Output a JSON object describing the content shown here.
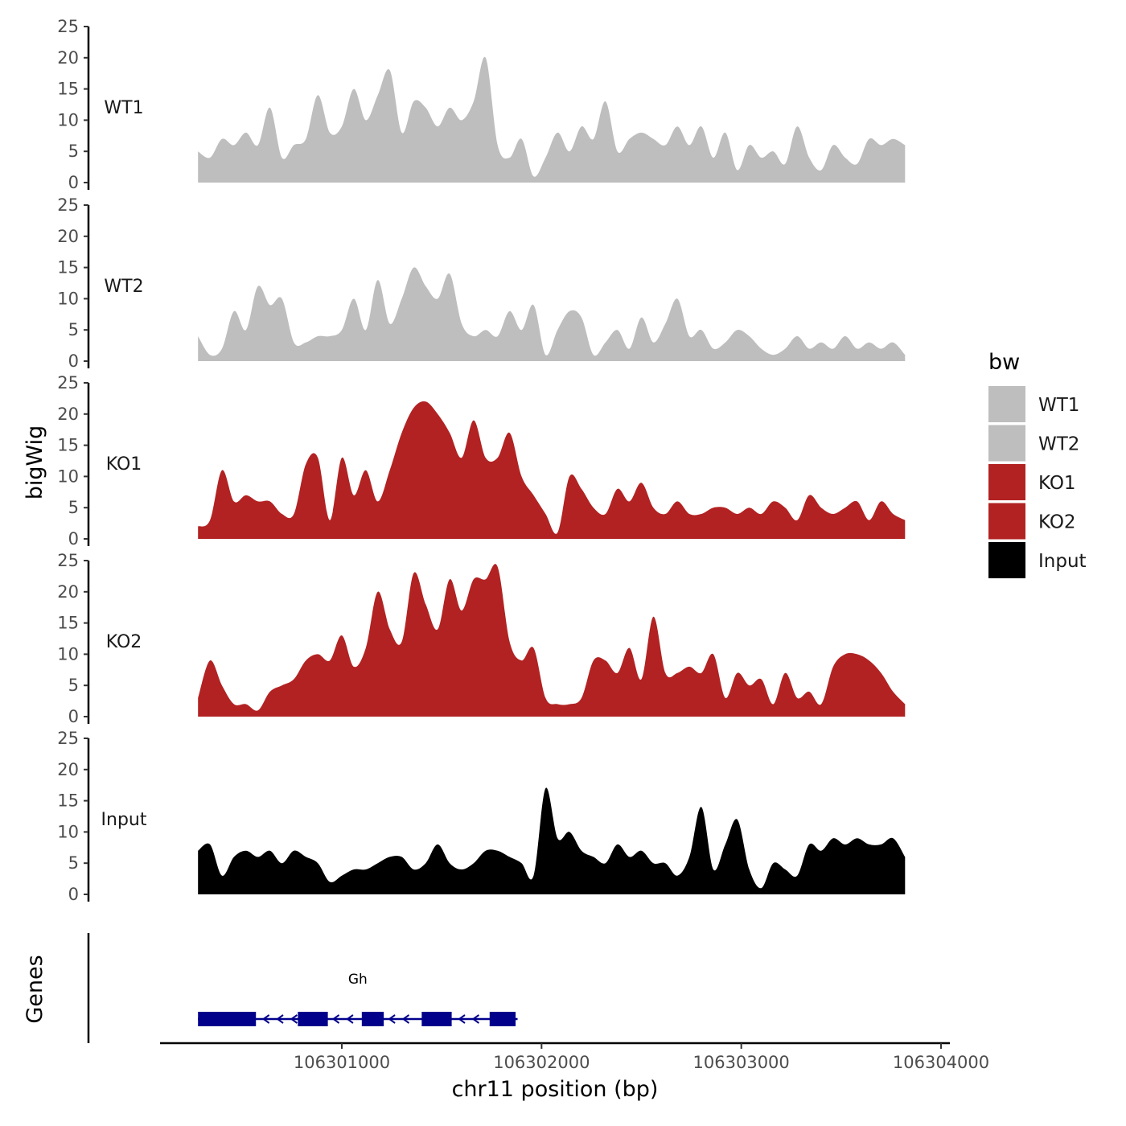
{
  "chart_data": {
    "type": "area",
    "layout": "stacked-tracks",
    "ylabel": "bigWig",
    "xlabel": "chr11 position (bp)",
    "genes_label": "Genes",
    "ylim": [
      0,
      25
    ],
    "y_ticks": [
      "0",
      "5",
      "10",
      "15",
      "20",
      "25"
    ],
    "xlim": [
      106300000,
      106304000
    ],
    "x_ticks": [
      {
        "value": 106301000,
        "label": "106301000"
      },
      {
        "value": 106302000,
        "label": "106302000"
      },
      {
        "value": 106303000,
        "label": "106303000"
      },
      {
        "value": 106304000,
        "label": "106304000"
      }
    ],
    "x_range": [
      106300280,
      106303840
    ],
    "x_step": 60,
    "legend": {
      "title": "bw",
      "placement": "right",
      "entries": [
        {
          "name": "WT1",
          "color": "#bebebe"
        },
        {
          "name": "WT2",
          "color": "#bebebe"
        },
        {
          "name": "KO1",
          "color": "#b22222"
        },
        {
          "name": "KO2",
          "color": "#b22222"
        },
        {
          "name": "Input",
          "color": "#000000"
        }
      ]
    },
    "series": [
      {
        "name": "WT1",
        "color": "#bebebe",
        "values": [
          5,
          4,
          7,
          6,
          8,
          6,
          12,
          4,
          6,
          7,
          14,
          8,
          9,
          15,
          10,
          14,
          18,
          8,
          13,
          12,
          9,
          12,
          10,
          13,
          20,
          6,
          4,
          7,
          1,
          4,
          8,
          5,
          9,
          7,
          13,
          5,
          7,
          8,
          7,
          6,
          9,
          6,
          9,
          4,
          8,
          2,
          6,
          4,
          5,
          3,
          9,
          4,
          2,
          6,
          4,
          3,
          7,
          6,
          7,
          6
        ]
      },
      {
        "name": "WT2",
        "color": "#bebebe",
        "values": [
          4,
          1,
          2,
          8,
          5,
          12,
          9,
          10,
          3,
          3,
          4,
          4,
          5,
          10,
          5,
          13,
          6,
          10,
          15,
          12,
          10,
          14,
          6,
          4,
          5,
          4,
          8,
          5,
          9,
          1,
          5,
          8,
          7,
          1,
          3,
          5,
          2,
          7,
          3,
          6,
          10,
          4,
          5,
          2,
          3,
          5,
          4,
          2,
          1,
          2,
          4,
          2,
          3,
          2,
          4,
          2,
          3,
          2,
          3,
          1
        ]
      },
      {
        "name": "KO1",
        "color": "#b22222",
        "values": [
          2,
          3,
          11,
          6,
          7,
          6,
          6,
          4,
          4,
          12,
          13,
          3,
          13,
          7,
          11,
          6,
          11,
          17,
          21,
          22,
          20,
          17,
          13,
          19,
          13,
          13,
          17,
          10,
          7,
          4,
          1,
          10,
          8,
          5,
          4,
          8,
          6,
          9,
          5,
          4,
          6,
          4,
          4,
          5,
          5,
          4,
          5,
          4,
          6,
          5,
          3,
          7,
          5,
          4,
          5,
          6,
          3,
          6,
          4,
          3
        ]
      },
      {
        "name": "KO2",
        "color": "#b22222",
        "values": [
          3,
          9,
          5,
          2,
          2,
          1,
          4,
          5,
          6,
          9,
          10,
          9,
          13,
          8,
          11,
          20,
          14,
          12,
          23,
          18,
          14,
          22,
          17,
          22,
          22,
          24,
          12,
          9,
          11,
          3,
          2,
          2,
          3,
          9,
          9,
          7,
          11,
          6,
          16,
          7,
          7,
          8,
          7,
          10,
          3,
          7,
          5,
          6,
          2,
          7,
          3,
          4,
          2,
          8,
          10,
          10,
          9,
          7,
          4,
          2
        ]
      },
      {
        "name": "Input",
        "color": "#000000",
        "values": [
          7,
          8,
          3,
          6,
          7,
          6,
          7,
          5,
          7,
          6,
          5,
          2,
          3,
          4,
          4,
          5,
          6,
          6,
          4,
          5,
          8,
          5,
          4,
          5,
          7,
          7,
          6,
          5,
          3,
          17,
          9,
          10,
          7,
          6,
          5,
          8,
          6,
          7,
          5,
          5,
          3,
          6,
          14,
          4,
          8,
          12,
          4,
          1,
          5,
          4,
          3,
          8,
          7,
          9,
          8,
          9,
          8,
          8,
          9,
          6
        ]
      }
    ],
    "gene": {
      "name": "Gh",
      "strand": "-",
      "color": "#00008b",
      "start": 106300280,
      "end": 106301880,
      "exons": [
        [
          106300280,
          106300570
        ],
        [
          106300780,
          106300930
        ],
        [
          106301100,
          106301210
        ],
        [
          106301400,
          106301550
        ],
        [
          106301740,
          106301870
        ]
      ]
    }
  }
}
